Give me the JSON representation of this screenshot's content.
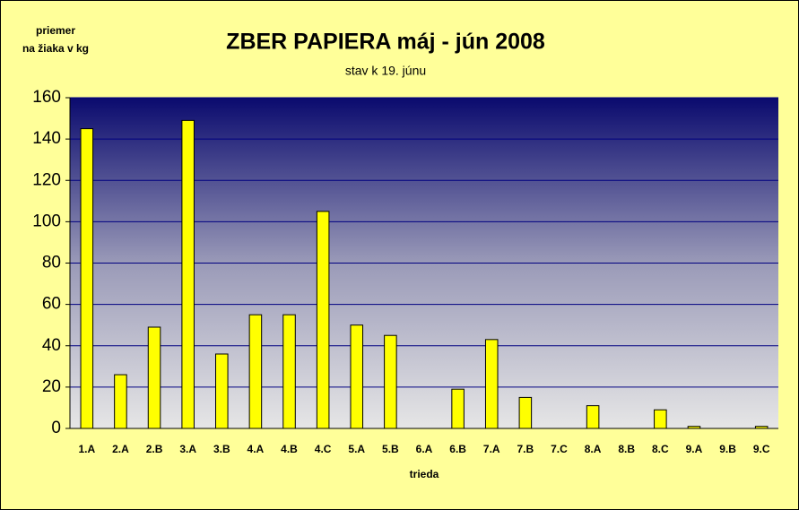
{
  "chart_data": {
    "type": "bar",
    "title": "ZBER PAPIERA máj - jún 2008",
    "subtitle": "stav k 19. júnu",
    "ylabel": [
      "priemer",
      "na žiaka v kg"
    ],
    "xlabel": "trieda",
    "categories": [
      "1.A",
      "2.A",
      "2.B",
      "3.A",
      "3.B",
      "4.A",
      "4.B",
      "4.C",
      "5.A",
      "5.B",
      "6.A",
      "6.B",
      "7.A",
      "7.B",
      "7.C",
      "8.A",
      "8.B",
      "8.C",
      "9.A",
      "9.B",
      "9.C"
    ],
    "values": [
      145,
      26,
      49,
      149,
      36,
      55,
      55,
      105,
      50,
      45,
      0,
      19,
      43,
      15,
      0,
      11,
      0,
      9,
      1,
      0,
      1
    ],
    "color": "#ffff00",
    "ylim": [
      0,
      160
    ],
    "yticks": [
      0,
      20,
      40,
      60,
      80,
      100,
      120,
      140,
      160
    ],
    "grid": true
  }
}
